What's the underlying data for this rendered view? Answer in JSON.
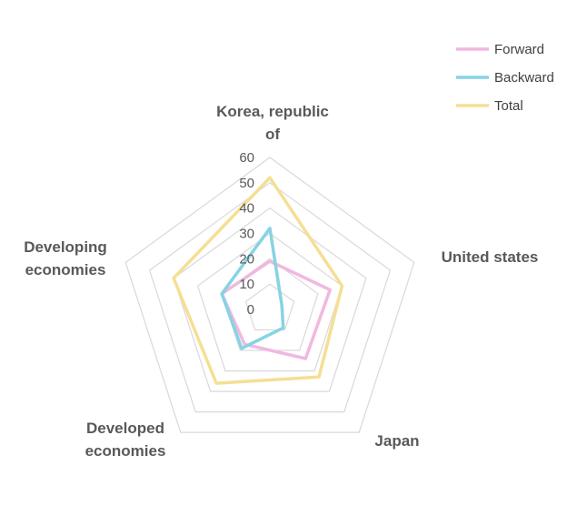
{
  "chart_data": {
    "type": "radar",
    "axes": [
      "Korea, republic of",
      "United states",
      "Japan",
      "Developed economies",
      "Developing economies"
    ],
    "axis_label_lines": [
      [
        "Korea, republic",
        "of"
      ],
      [
        "United states"
      ],
      [
        "Japan"
      ],
      [
        "Developed",
        "economies"
      ],
      [
        "Developing",
        "economies"
      ]
    ],
    "rlim": [
      0,
      60
    ],
    "ticks": [
      0,
      10,
      20,
      30,
      40,
      50,
      60
    ],
    "tick_labels": [
      "0",
      "10",
      "20",
      "30",
      "40",
      "50",
      "60"
    ],
    "series": [
      {
        "name": "Forward",
        "values": [
          19,
          25,
          24,
          17,
          20
        ],
        "color": "#f0b8e0"
      },
      {
        "name": "Backward",
        "values": [
          32,
          5,
          9,
          19,
          20
        ],
        "color": "#86d3e3"
      },
      {
        "name": "Total",
        "values": [
          52,
          30,
          33,
          36,
          40
        ],
        "color": "#f5df93"
      }
    ],
    "grid": true,
    "legend_position": "top-right"
  }
}
